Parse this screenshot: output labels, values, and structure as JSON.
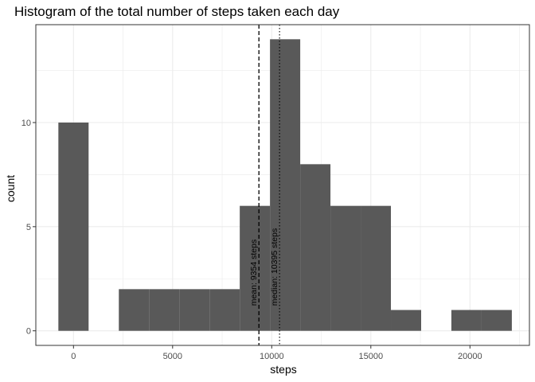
{
  "chart_data": {
    "type": "bar",
    "title": "Histogram of the total number of steps taken each day",
    "xlabel": "steps",
    "ylabel": "count",
    "xlim": [
      -1900,
      23000
    ],
    "ylim": [
      -0.7,
      14.7
    ],
    "x_ticks": [
      0,
      5000,
      10000,
      15000,
      20000
    ],
    "x_tick_labels": [
      "0",
      "5000",
      "10000",
      "15000",
      "20000"
    ],
    "y_ticks": [
      0,
      5,
      10
    ],
    "y_tick_labels": [
      "0",
      "5",
      "10"
    ],
    "bin_width": 1525,
    "bins": [
      {
        "start": -762.5,
        "end": 762.5,
        "count": 10
      },
      {
        "start": 762.5,
        "end": 2287.5,
        "count": 0
      },
      {
        "start": 2287.5,
        "end": 3812.5,
        "count": 2
      },
      {
        "start": 3812.5,
        "end": 5337.5,
        "count": 2
      },
      {
        "start": 5337.5,
        "end": 6862.5,
        "count": 2
      },
      {
        "start": 6862.5,
        "end": 8387.5,
        "count": 2
      },
      {
        "start": 8387.5,
        "end": 9912.5,
        "count": 6
      },
      {
        "start": 9912.5,
        "end": 11437.5,
        "count": 14
      },
      {
        "start": 11437.5,
        "end": 12962.5,
        "count": 8
      },
      {
        "start": 12962.5,
        "end": 14487.5,
        "count": 6
      },
      {
        "start": 14487.5,
        "end": 16012.5,
        "count": 6
      },
      {
        "start": 16012.5,
        "end": 17537.5,
        "count": 1
      },
      {
        "start": 17537.5,
        "end": 19062.5,
        "count": 0
      },
      {
        "start": 19062.5,
        "end": 20587.5,
        "count": 1
      },
      {
        "start": 20587.5,
        "end": 22112.5,
        "count": 1
      }
    ],
    "reference_lines": [
      {
        "value": 9354,
        "style": "dashed",
        "label": "mean: 9354 steps"
      },
      {
        "value": 10395,
        "style": "dotted",
        "label": "median: 10395 steps"
      }
    ],
    "grid": true,
    "bar_color": "#595959",
    "panel_border_color": "#333333",
    "grid_color": "#ebebeb"
  }
}
